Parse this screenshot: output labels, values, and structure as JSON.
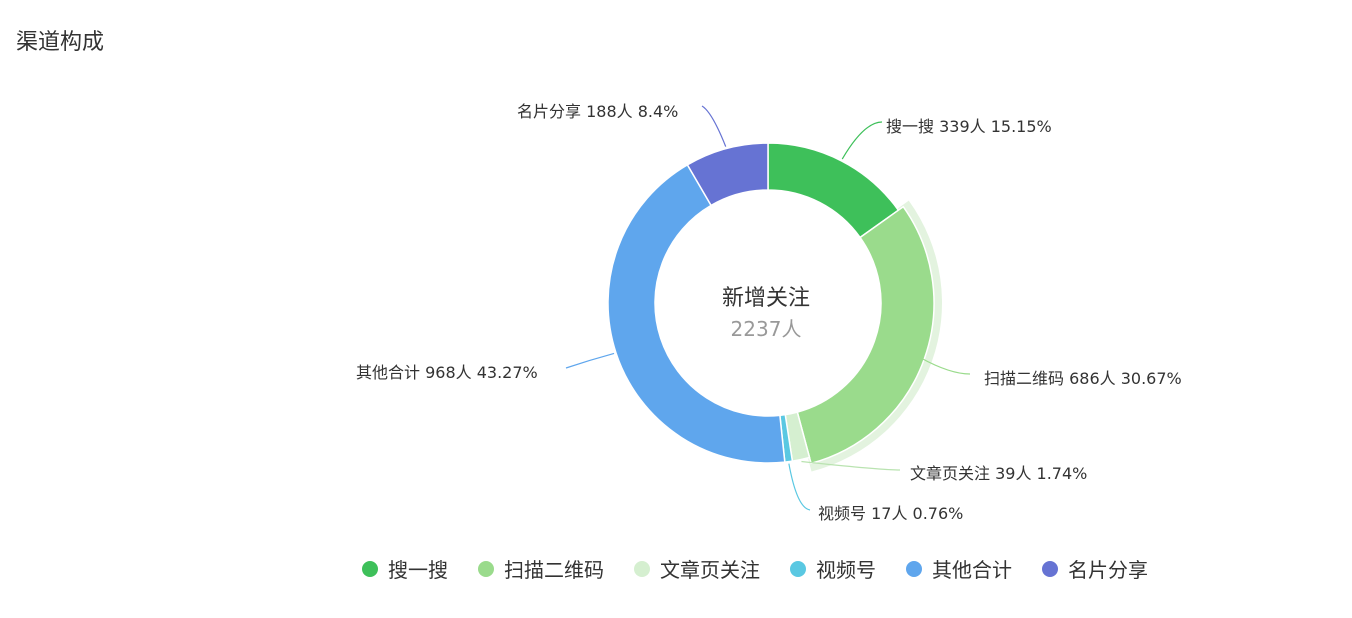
{
  "panel": {
    "title": "渠道构成"
  },
  "chart_data": {
    "type": "pie",
    "donut": true,
    "center": {
      "title": "新增关注",
      "total": "2237人"
    },
    "unit": "人",
    "highlighted": "扫描二维码",
    "slices": [
      {
        "name": "搜一搜",
        "value": 339,
        "percent": 15.15,
        "color": "#3ec05a"
      },
      {
        "name": "扫描二维码",
        "value": 686,
        "percent": 30.67,
        "color": "#9adb8c"
      },
      {
        "name": "文章页关注",
        "value": 39,
        "percent": 1.74,
        "color": "#d5efd0"
      },
      {
        "name": "视频号",
        "value": 17,
        "percent": 0.76,
        "color": "#5ac8e2"
      },
      {
        "name": "其他合计",
        "value": 968,
        "percent": 43.27,
        "color": "#5fa6ed"
      },
      {
        "name": "名片分享",
        "value": 188,
        "percent": 8.4,
        "color": "#6673d3"
      }
    ],
    "legend_position": "bottom"
  }
}
